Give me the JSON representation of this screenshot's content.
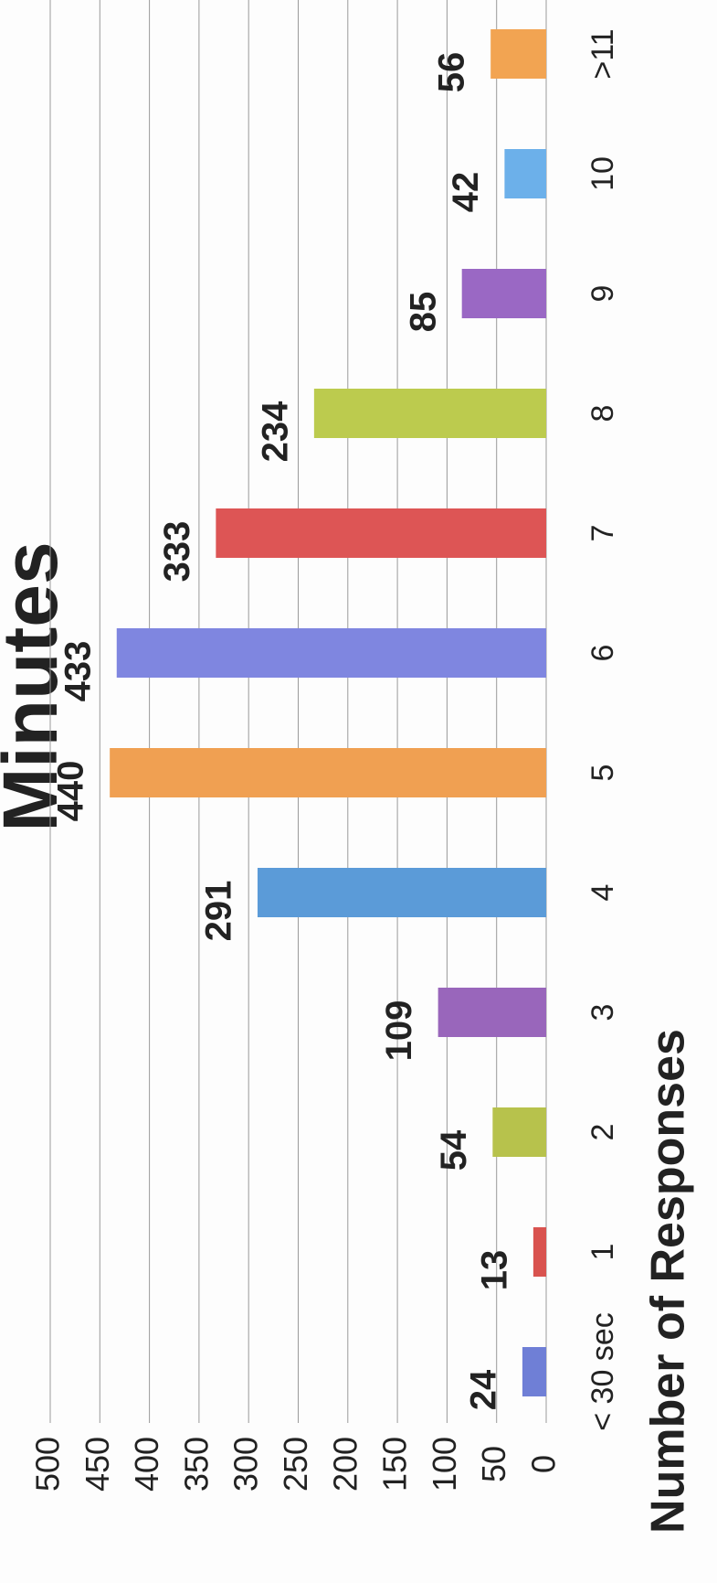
{
  "chart_data": {
    "type": "bar",
    "title": "Minutes",
    "y_label": "Number of Responses",
    "categories": [
      "< 30 sec",
      "1",
      "2",
      "3",
      "4",
      "5",
      "6",
      "7",
      "8",
      "9",
      "10",
      ">11"
    ],
    "values": [
      24,
      13,
      54,
      109,
      291,
      440,
      433,
      333,
      234,
      85,
      42,
      56
    ],
    "colors": [
      "#6f7fd6",
      "#d9534f",
      "#b7c24c",
      "#9966bb",
      "#5b9bd8",
      "#f0a052",
      "#7f86e0",
      "#dd5555",
      "#bccb4e",
      "#9a68c4",
      "#6cb0ea",
      "#f2a452"
    ],
    "ylim": [
      0,
      500
    ],
    "yticks": [
      0,
      50,
      100,
      150,
      200,
      250,
      300,
      350,
      400,
      450,
      500
    ],
    "grid": true
  }
}
